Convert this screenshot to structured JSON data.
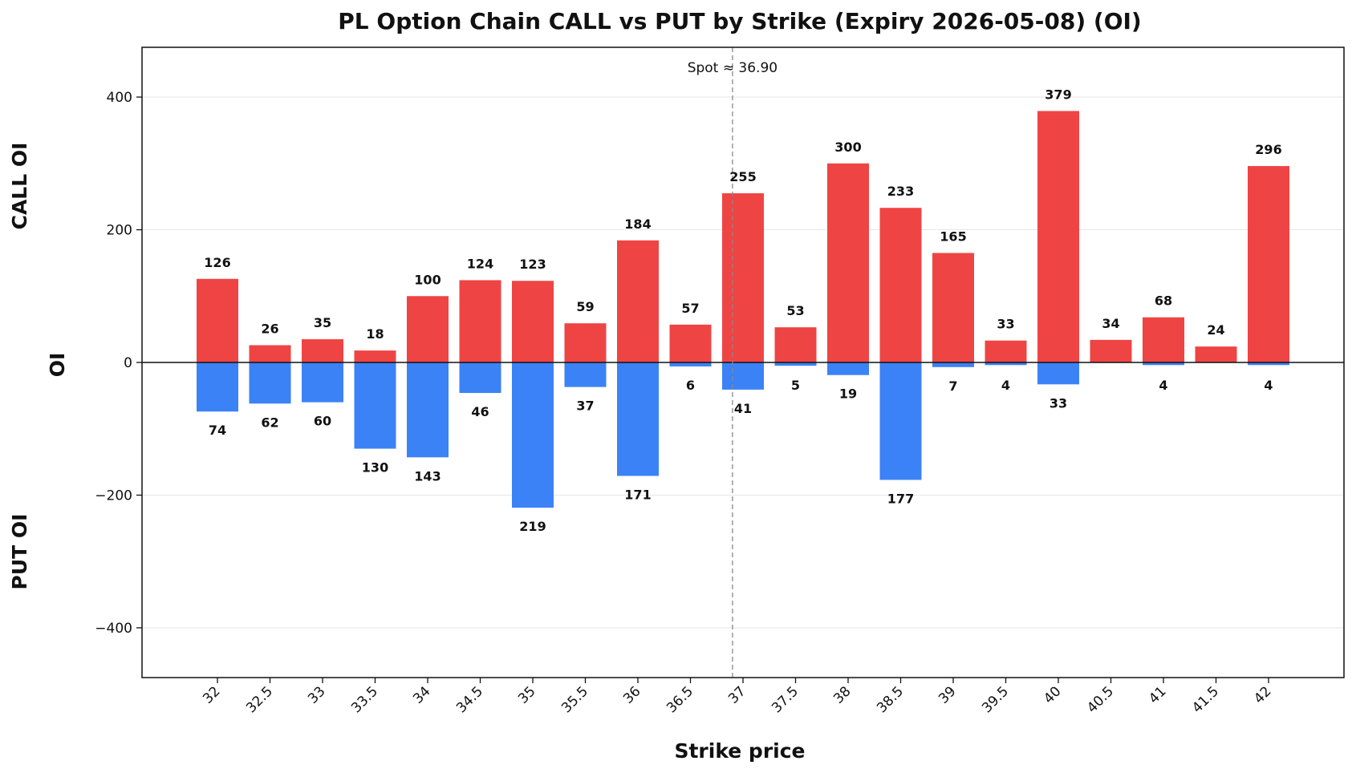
{
  "chart_data": {
    "type": "bar",
    "title": "PL Option Chain CALL vs PUT by Strike (Expiry 2026-05-08) (OI)",
    "xlabel": "Strike price",
    "ylabel": "OI",
    "side_labels": {
      "top": "CALL OI",
      "bottom": "PUT OI"
    },
    "categories": [
      "32",
      "32.5",
      "33",
      "33.5",
      "34",
      "34.5",
      "35",
      "35.5",
      "36",
      "36.5",
      "37",
      "37.5",
      "38",
      "38.5",
      "39",
      "39.5",
      "40",
      "40.5",
      "41",
      "41.5",
      "42"
    ],
    "series": [
      {
        "name": "CALL",
        "color": "#ef4444",
        "values": [
          126,
          26,
          35,
          18,
          100,
          124,
          123,
          59,
          184,
          57,
          255,
          53,
          300,
          233,
          165,
          33,
          379,
          34,
          68,
          24,
          296
        ]
      },
      {
        "name": "PUT",
        "color": "#3b82f6",
        "values": [
          74,
          62,
          60,
          130,
          143,
          46,
          219,
          37,
          171,
          6,
          41,
          5,
          19,
          177,
          7,
          4,
          33,
          0,
          4,
          0,
          4
        ]
      }
    ],
    "put_labels": [
      "74",
      "62",
      "60",
      "130",
      "143",
      "46",
      "219",
      "37",
      "171",
      "6",
      "41",
      "5",
      "19",
      "177",
      "7",
      "4",
      "33",
      "",
      "4",
      "",
      "4"
    ],
    "y_ticks": [
      400,
      200,
      0,
      -200,
      -400
    ],
    "y_tick_labels": [
      "400",
      "200",
      "0",
      "−200",
      "−400"
    ],
    "ylim": [
      -475,
      475
    ],
    "spot": {
      "value": 36.9,
      "label": "Spot ≈ 36.90"
    },
    "grid": true
  }
}
